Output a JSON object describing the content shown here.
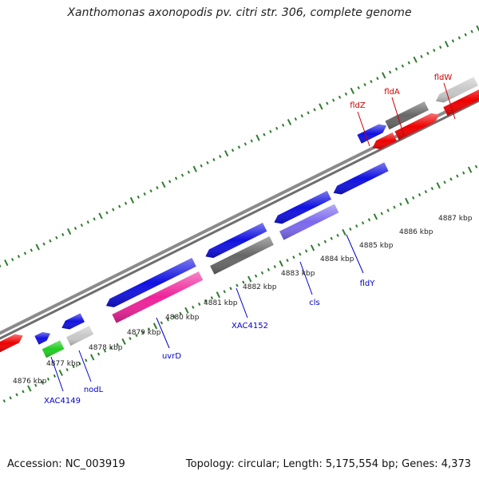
{
  "title": "Xanthomonas axonopodis pv. citri str. 306, complete genome",
  "footer": {
    "accession": "Accession: NC_003919",
    "summary": "Topology: circular; Length: 5,175,554 bp; Genes: 4,373"
  },
  "colors": {
    "background": "#ffffff",
    "backbone": "#808080",
    "tick": "#2e7d2e",
    "label_forward": "#cc0000",
    "label_reverse": "#0000cc",
    "label_kbp": "#222222",
    "blue": "#1010e0",
    "red": "#ee0000",
    "gray": "#666666",
    "light_gray": "#c8c8c8",
    "pink": "#ee2299",
    "green": "#22cc22",
    "violet": "#7b68ee"
  },
  "kbp_labels": [
    "4876 kbp",
    "4877 kbp",
    "4878 kbp",
    "4879 kbp",
    "4880 kbp",
    "4881 kbp",
    "4882 kbp",
    "4883 kbp",
    "4884 kbp",
    "4885 kbp",
    "4886 kbp",
    "4887 kbp"
  ],
  "gene_labels": [
    {
      "name": "fldZ",
      "strand": "forward"
    },
    {
      "name": "fldA",
      "strand": "forward"
    },
    {
      "name": "fldW",
      "strand": "forward"
    },
    {
      "name": "XAC4149",
      "strand": "reverse"
    },
    {
      "name": "nodL",
      "strand": "reverse"
    },
    {
      "name": "uvrD",
      "strand": "reverse"
    },
    {
      "name": "XAC4152",
      "strand": "reverse"
    },
    {
      "name": "cls",
      "strand": "reverse"
    },
    {
      "name": "fldY",
      "strand": "reverse"
    }
  ]
}
